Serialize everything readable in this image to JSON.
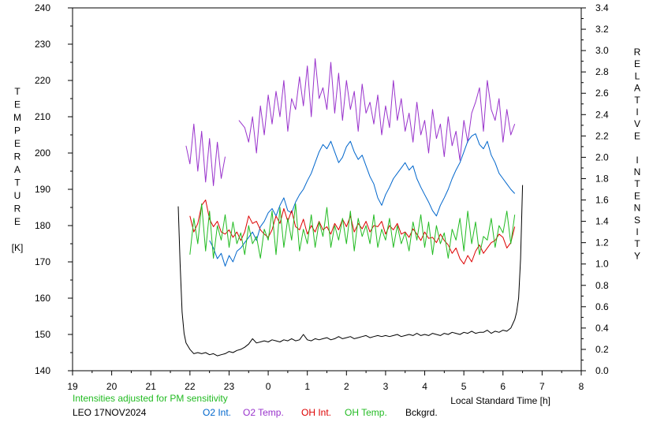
{
  "chart_data": {
    "type": "line",
    "left_axis_label": [
      "T",
      "E",
      "M",
      "P",
      "E",
      "R",
      "A",
      "T",
      "U",
      "R",
      "E",
      "",
      "[K]"
    ],
    "right_axis_label": [
      "R",
      "E",
      "L",
      "A",
      "T",
      "I",
      "V",
      "E",
      "",
      "I",
      "N",
      "T",
      "E",
      "N",
      "S",
      "I",
      "T",
      "Y"
    ],
    "xlabel": "Local Standard Time [h]",
    "x_tick_labels": [
      "19",
      "20",
      "21",
      "22",
      "23",
      "0",
      "1",
      "2",
      "3",
      "4",
      "5",
      "6",
      "7",
      "8"
    ],
    "x_range": [
      19,
      32
    ],
    "ylim_left": [
      140,
      240
    ],
    "y_left_ticks": [
      140,
      150,
      160,
      170,
      180,
      190,
      200,
      210,
      220,
      230,
      240
    ],
    "ylim_right": [
      0.0,
      3.4
    ],
    "y_right_ticks": [
      "0.0",
      "0.2",
      "0.4",
      "0.6",
      "0.8",
      "1.0",
      "1.2",
      "1.4",
      "1.6",
      "1.8",
      "2.0",
      "2.2",
      "2.4",
      "2.6",
      "2.8",
      "3.0",
      "3.2",
      "3.4"
    ],
    "note": "Intensities adjusted for PM sensitivity",
    "station_date": "LEO 17NOV2024",
    "legend": [
      {
        "label": "O2 Int.",
        "color": "#0066cc"
      },
      {
        "label": "O2 Temp.",
        "color": "#9933cc"
      },
      {
        "label": "OH Int.",
        "color": "#dd0000"
      },
      {
        "label": "OH Temp.",
        "color": "#22bb22"
      },
      {
        "label": "Bckgrd.",
        "color": "#000000"
      }
    ],
    "series": [
      {
        "name": "O2 Temp.",
        "color": "#9933cc",
        "axis": "left",
        "segments": [
          {
            "x": [
              21.9,
              22.0,
              22.1,
              22.2,
              22.3,
              22.4,
              22.5,
              22.6,
              22.7,
              22.8,
              22.9
            ],
            "y": [
              202,
              197,
              208,
              195,
              206,
              192,
              204,
              191,
              203,
              193,
              199
            ]
          },
          {
            "x": [
              23.25,
              23.4,
              23.5,
              23.6,
              23.7,
              23.8,
              23.9,
              24.0,
              24.1,
              24.2,
              24.3,
              24.4,
              24.5,
              24.6,
              24.7,
              24.8,
              24.9,
              25.0,
              25.1,
              25.2,
              25.3,
              25.4,
              25.5,
              25.6,
              25.7,
              25.8,
              25.9,
              26.0,
              26.1,
              26.2,
              26.3,
              26.4,
              26.5,
              26.6,
              26.7,
              26.8,
              26.9,
              27.0,
              27.1,
              27.2,
              27.3,
              27.4,
              27.5,
              27.6,
              27.7,
              27.8,
              27.9,
              28.0,
              28.1,
              28.2,
              28.3,
              28.4,
              28.5,
              28.6,
              28.7,
              28.8,
              28.9,
              29.0,
              29.1,
              29.2,
              29.3,
              29.4,
              29.5,
              29.6,
              29.7,
              29.8,
              29.9,
              30.0,
              30.1,
              30.2,
              30.3
            ],
            "y": [
              209,
              207,
              203,
              210,
              200,
              213,
              205,
              216,
              208,
              217,
              210,
              220,
              206,
              215,
              212,
              221,
              213,
              224,
              210,
              226,
              215,
              218,
              212,
              225,
              211,
              222,
              209,
              220,
              212,
              217,
              206,
              219,
              211,
              214,
              208,
              216,
              205,
              213,
              207,
              220,
              209,
              215,
              206,
              211,
              203,
              214,
              205,
              209,
              200,
              212,
              204,
              208,
              199,
              210,
              202,
              206,
              198,
              209,
              203,
              211,
              214,
              218,
              206,
              220,
              212,
              209,
              215,
              203,
              212,
              205,
              208
            ]
          }
        ]
      },
      {
        "name": "O2 Int.",
        "color": "#0066cc",
        "axis": "right",
        "x": [
          22.5,
          22.6,
          22.7,
          22.8,
          22.9,
          23.0,
          23.1,
          23.2,
          23.3,
          23.4,
          23.5,
          23.6,
          23.7,
          23.8,
          23.9,
          24.0,
          24.1,
          24.2,
          24.3,
          24.4,
          24.5,
          24.6,
          24.7,
          24.8,
          24.9,
          25.0,
          25.1,
          25.2,
          25.3,
          25.4,
          25.5,
          25.6,
          25.7,
          25.8,
          25.9,
          26.0,
          26.1,
          26.2,
          26.3,
          26.4,
          26.5,
          26.6,
          26.7,
          26.8,
          26.9,
          27.0,
          27.1,
          27.2,
          27.3,
          27.4,
          27.5,
          27.6,
          27.7,
          27.8,
          27.9,
          28.0,
          28.1,
          28.2,
          28.3,
          28.4,
          28.5,
          28.6,
          28.7,
          28.8,
          28.9,
          29.0,
          29.1,
          29.2,
          29.3,
          29.4,
          29.5,
          29.6,
          29.7,
          29.8,
          29.9,
          30.0,
          30.1,
          30.2,
          30.3
        ],
        "y": [
          1.22,
          1.15,
          1.05,
          1.1,
          0.98,
          1.08,
          1.02,
          1.12,
          1.15,
          1.2,
          1.25,
          1.3,
          1.22,
          1.35,
          1.4,
          1.48,
          1.52,
          1.45,
          1.55,
          1.62,
          1.5,
          1.48,
          1.58,
          1.65,
          1.7,
          1.78,
          1.85,
          1.95,
          2.05,
          2.12,
          2.08,
          2.15,
          2.05,
          1.95,
          2.0,
          2.1,
          2.15,
          2.05,
          1.98,
          2.02,
          1.92,
          1.82,
          1.75,
          1.62,
          1.55,
          1.65,
          1.72,
          1.8,
          1.85,
          1.9,
          1.95,
          1.88,
          1.92,
          1.8,
          1.72,
          1.65,
          1.58,
          1.5,
          1.45,
          1.55,
          1.62,
          1.7,
          1.8,
          1.88,
          1.95,
          2.05,
          2.15,
          2.2,
          2.22,
          2.12,
          2.08,
          2.15,
          2.02,
          1.95,
          1.85,
          1.8,
          1.75,
          1.7,
          1.66
        ]
      },
      {
        "name": "OH Int.",
        "color": "#dd0000",
        "axis": "right",
        "x": [
          22.0,
          22.1,
          22.2,
          22.3,
          22.4,
          22.5,
          22.6,
          22.7,
          22.8,
          22.9,
          23.0,
          23.1,
          23.2,
          23.3,
          23.4,
          23.5,
          23.6,
          23.7,
          23.8,
          23.9,
          24.0,
          24.1,
          24.2,
          24.3,
          24.4,
          24.5,
          24.6,
          24.7,
          24.8,
          24.9,
          25.0,
          25.1,
          25.2,
          25.3,
          25.4,
          25.5,
          25.6,
          25.7,
          25.8,
          25.9,
          26.0,
          26.1,
          26.2,
          26.3,
          26.4,
          26.5,
          26.6,
          26.7,
          26.8,
          26.9,
          27.0,
          27.1,
          27.2,
          27.3,
          27.4,
          27.5,
          27.6,
          27.7,
          27.8,
          27.9,
          28.0,
          28.1,
          28.2,
          28.3,
          28.4,
          28.5,
          28.6,
          28.7,
          28.8,
          28.9,
          29.0,
          29.1,
          29.2,
          29.3,
          29.4,
          29.5,
          29.6,
          29.7,
          29.8,
          29.9,
          30.0,
          30.1,
          30.2,
          30.3
        ],
        "y": [
          1.45,
          1.3,
          1.38,
          1.55,
          1.6,
          1.42,
          1.35,
          1.4,
          1.3,
          1.28,
          1.32,
          1.25,
          1.3,
          1.22,
          1.3,
          1.45,
          1.38,
          1.4,
          1.32,
          1.28,
          1.25,
          1.32,
          1.45,
          1.38,
          1.52,
          1.4,
          1.5,
          1.35,
          1.32,
          1.42,
          1.28,
          1.36,
          1.3,
          1.4,
          1.32,
          1.35,
          1.28,
          1.38,
          1.32,
          1.42,
          1.35,
          1.45,
          1.3,
          1.38,
          1.33,
          1.4,
          1.3,
          1.36,
          1.35,
          1.4,
          1.28,
          1.36,
          1.32,
          1.38,
          1.28,
          1.3,
          1.25,
          1.33,
          1.28,
          1.22,
          1.3,
          1.24,
          1.25,
          1.2,
          1.28,
          1.22,
          1.18,
          1.1,
          1.15,
          1.05,
          1.0,
          1.08,
          1.02,
          1.12,
          1.18,
          1.1,
          1.15,
          1.2,
          1.22,
          1.28,
          1.25,
          1.15,
          1.2,
          1.35
        ]
      },
      {
        "name": "OH Temp.",
        "color": "#22bb22",
        "axis": "left",
        "x": [
          22.0,
          22.1,
          22.2,
          22.3,
          22.4,
          22.5,
          22.6,
          22.7,
          22.8,
          22.9,
          23.0,
          23.1,
          23.2,
          23.3,
          23.4,
          23.5,
          23.6,
          23.7,
          23.8,
          23.9,
          24.0,
          24.1,
          24.2,
          24.3,
          24.4,
          24.5,
          24.6,
          24.7,
          24.8,
          24.9,
          25.0,
          25.1,
          25.2,
          25.3,
          25.4,
          25.5,
          25.6,
          25.7,
          25.8,
          25.9,
          26.0,
          26.1,
          26.2,
          26.3,
          26.4,
          26.5,
          26.6,
          26.7,
          26.8,
          26.9,
          27.0,
          27.1,
          27.2,
          27.3,
          27.4,
          27.5,
          27.6,
          27.7,
          27.8,
          27.9,
          28.0,
          28.1,
          28.2,
          28.3,
          28.4,
          28.5,
          28.6,
          28.7,
          28.8,
          28.9,
          29.0,
          29.1,
          29.2,
          29.3,
          29.4,
          29.5,
          29.6,
          29.7,
          29.8,
          29.9,
          30.0,
          30.1,
          30.2,
          30.3
        ],
        "y": [
          172,
          182,
          175,
          186,
          173,
          184,
          171,
          180,
          176,
          183,
          174,
          181,
          175,
          178,
          172,
          180,
          175,
          177,
          171,
          179,
          176,
          184,
          172,
          185,
          174,
          182,
          176,
          186,
          173,
          179,
          175,
          183,
          174,
          181,
          177,
          185,
          174,
          180,
          176,
          182,
          175,
          184,
          173,
          182,
          177,
          180,
          175,
          183,
          174,
          179,
          176,
          182,
          174,
          180,
          175,
          178,
          173,
          181,
          176,
          183,
          174,
          181,
          172,
          180,
          175,
          178,
          171,
          179,
          176,
          182,
          173,
          184,
          175,
          181,
          172,
          177,
          176,
          182,
          174,
          180,
          178,
          184,
          175,
          183
        ]
      },
      {
        "name": "Bckgrd.",
        "color": "#000000",
        "axis": "right",
        "x": [
          21.7,
          21.75,
          21.8,
          21.85,
          21.9,
          22.0,
          22.1,
          22.2,
          22.3,
          22.4,
          22.5,
          22.6,
          22.7,
          22.8,
          22.9,
          23.0,
          23.1,
          23.2,
          23.3,
          23.4,
          23.5,
          23.6,
          23.7,
          23.8,
          23.9,
          24.0,
          24.1,
          24.2,
          24.3,
          24.4,
          24.5,
          24.6,
          24.7,
          24.8,
          24.9,
          25.0,
          25.1,
          25.2,
          25.3,
          25.4,
          25.5,
          25.6,
          25.7,
          25.8,
          25.9,
          26.0,
          26.1,
          26.2,
          26.3,
          26.4,
          26.5,
          26.6,
          26.7,
          26.8,
          26.9,
          27.0,
          27.1,
          27.2,
          27.3,
          27.4,
          27.5,
          27.6,
          27.7,
          27.8,
          27.9,
          28.0,
          28.1,
          28.2,
          28.3,
          28.4,
          28.5,
          28.6,
          28.7,
          28.8,
          28.9,
          29.0,
          29.1,
          29.2,
          29.3,
          29.4,
          29.5,
          29.6,
          29.7,
          29.8,
          29.9,
          30.0,
          30.1,
          30.2,
          30.25,
          30.3,
          30.35,
          30.4,
          30.45,
          30.5
        ],
        "y": [
          1.54,
          1.0,
          0.55,
          0.35,
          0.26,
          0.2,
          0.16,
          0.17,
          0.16,
          0.17,
          0.15,
          0.16,
          0.14,
          0.15,
          0.16,
          0.18,
          0.17,
          0.19,
          0.2,
          0.22,
          0.25,
          0.3,
          0.26,
          0.27,
          0.28,
          0.27,
          0.29,
          0.28,
          0.27,
          0.29,
          0.28,
          0.3,
          0.28,
          0.29,
          0.34,
          0.29,
          0.28,
          0.3,
          0.29,
          0.3,
          0.31,
          0.29,
          0.3,
          0.32,
          0.3,
          0.31,
          0.32,
          0.3,
          0.31,
          0.32,
          0.33,
          0.31,
          0.32,
          0.33,
          0.32,
          0.33,
          0.32,
          0.33,
          0.34,
          0.32,
          0.33,
          0.34,
          0.33,
          0.35,
          0.33,
          0.34,
          0.33,
          0.35,
          0.34,
          0.33,
          0.35,
          0.34,
          0.36,
          0.35,
          0.34,
          0.36,
          0.35,
          0.37,
          0.35,
          0.36,
          0.36,
          0.38,
          0.35,
          0.37,
          0.36,
          0.38,
          0.37,
          0.4,
          0.44,
          0.48,
          0.55,
          0.68,
          1.05,
          1.74
        ]
      }
    ]
  }
}
